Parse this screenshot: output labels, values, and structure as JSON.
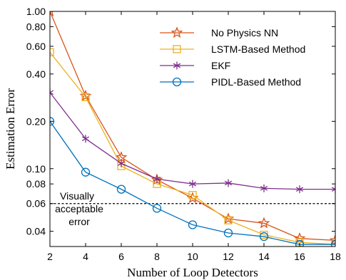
{
  "chart_data": {
    "type": "line",
    "xlabel": "Number of Loop Detectors",
    "ylabel": "Estimation Error",
    "x": [
      2,
      4,
      6,
      8,
      10,
      12,
      14,
      16,
      18
    ],
    "xlim": [
      2,
      18
    ],
    "ylim": [
      0.032,
      1.0
    ],
    "yscale": "log",
    "xticks": [
      "2",
      "4",
      "6",
      "8",
      "10",
      "12",
      "14",
      "16",
      "18"
    ],
    "yticks": [
      {
        "value": 0.04,
        "label": "0.04"
      },
      {
        "value": 0.06,
        "label": "0.06"
      },
      {
        "value": 0.08,
        "label": "0.08"
      },
      {
        "value": 0.1,
        "label": "0.10"
      },
      {
        "value": 0.2,
        "label": "0.20"
      },
      {
        "value": 0.4,
        "label": "0.40"
      },
      {
        "value": 0.6,
        "label": "0.60"
      },
      {
        "value": 0.8,
        "label": "0.80"
      },
      {
        "value": 1.0,
        "label": "1.00"
      }
    ],
    "legend_position": "top-right",
    "series": [
      {
        "name": "No Physics NN",
        "color": "#d95319",
        "marker": "star",
        "values": [
          1.0,
          0.29,
          0.118,
          0.085,
          0.065,
          0.048,
          0.045,
          0.036,
          0.035
        ]
      },
      {
        "name": "LSTM-Based Method",
        "color": "#edb120",
        "marker": "square",
        "values": [
          0.55,
          0.285,
          0.104,
          0.08,
          0.068,
          0.047,
          0.038,
          0.034,
          0.033
        ]
      },
      {
        "name": "EKF",
        "color": "#7e2f8e",
        "marker": "asterisk",
        "values": [
          0.305,
          0.155,
          0.108,
          0.086,
          0.08,
          0.081,
          0.075,
          0.074,
          0.074
        ]
      },
      {
        "name": "PIDL-Based Method",
        "color": "#0072bd",
        "marker": "circle",
        "values": [
          0.2,
          0.095,
          0.074,
          0.056,
          0.044,
          0.039,
          0.037,
          0.033,
          0.033
        ]
      }
    ],
    "reference_line": {
      "value": 0.06,
      "style": "dashed",
      "color": "#000000"
    },
    "annotation": [
      "Visually",
      "acceptable",
      "error"
    ]
  }
}
